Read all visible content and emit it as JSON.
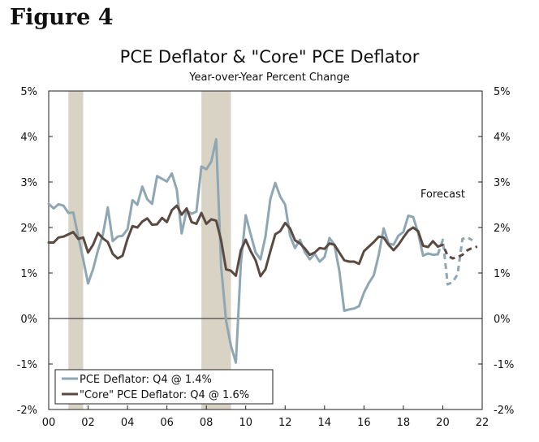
{
  "figure_label": "Figure 4",
  "chart_data": {
    "type": "line",
    "title": "PCE Deflator & \"Core\" PCE Deflator",
    "subtitle": "Year-over-Year Percent Change",
    "xlabel": "",
    "ylabel": "",
    "xlim": [
      2000,
      2022
    ],
    "ylim": [
      -2,
      5
    ],
    "y_ticks": [
      5,
      4,
      3,
      2,
      1,
      0,
      -1,
      -2
    ],
    "y_tick_labels": [
      "5%",
      "4%",
      "3%",
      "2%",
      "1%",
      "0%",
      "-1%",
      "-2%"
    ],
    "x_ticks": [
      2000,
      2002,
      2004,
      2006,
      2008,
      2010,
      2012,
      2014,
      2016,
      2018,
      2020,
      2022
    ],
    "x_tick_labels": [
      "00",
      "02",
      "04",
      "06",
      "08",
      "10",
      "12",
      "14",
      "16",
      "18",
      "20",
      "22"
    ],
    "recessions": [
      [
        2001.0,
        2001.75
      ],
      [
        2007.75,
        2009.25
      ]
    ],
    "annotation": "Forecast",
    "legend": {
      "placement": "bottom-left",
      "entries": [
        {
          "label": "PCE Deflator: Q4 @ 1.4%",
          "color": "#8fa6b3"
        },
        {
          "label": "\"Core\" PCE Deflator: Q4 @ 1.6%",
          "color": "#5a4a42"
        }
      ]
    },
    "series": [
      {
        "name": "PCE Deflator",
        "color": "#8fa6b3",
        "actual": [
          [
            2000.0,
            2.52
          ],
          [
            2000.25,
            2.42
          ],
          [
            2000.5,
            2.51
          ],
          [
            2000.75,
            2.48
          ],
          [
            2001.0,
            2.32
          ],
          [
            2001.25,
            2.33
          ],
          [
            2001.5,
            1.8
          ],
          [
            2001.75,
            1.3
          ],
          [
            2002.0,
            0.77
          ],
          [
            2002.25,
            1.08
          ],
          [
            2002.5,
            1.5
          ],
          [
            2002.75,
            1.85
          ],
          [
            2003.0,
            2.44
          ],
          [
            2003.25,
            1.7
          ],
          [
            2003.5,
            1.8
          ],
          [
            2003.75,
            1.82
          ],
          [
            2004.0,
            1.96
          ],
          [
            2004.25,
            2.6
          ],
          [
            2004.5,
            2.5
          ],
          [
            2004.75,
            2.9
          ],
          [
            2005.0,
            2.62
          ],
          [
            2005.25,
            2.52
          ],
          [
            2005.5,
            3.13
          ],
          [
            2005.75,
            3.07
          ],
          [
            2006.0,
            3.01
          ],
          [
            2006.25,
            3.19
          ],
          [
            2006.5,
            2.83
          ],
          [
            2006.75,
            1.87
          ],
          [
            2007.0,
            2.38
          ],
          [
            2007.25,
            2.3
          ],
          [
            2007.5,
            2.35
          ],
          [
            2007.75,
            3.34
          ],
          [
            2008.0,
            3.28
          ],
          [
            2008.25,
            3.45
          ],
          [
            2008.5,
            3.94
          ],
          [
            2008.75,
            1.15
          ],
          [
            2009.0,
            -0.05
          ],
          [
            2009.25,
            -0.6
          ],
          [
            2009.5,
            -0.97
          ],
          [
            2009.75,
            1.2
          ],
          [
            2010.0,
            2.27
          ],
          [
            2010.25,
            1.85
          ],
          [
            2010.5,
            1.45
          ],
          [
            2010.75,
            1.3
          ],
          [
            2011.0,
            1.8
          ],
          [
            2011.25,
            2.63
          ],
          [
            2011.5,
            2.98
          ],
          [
            2011.75,
            2.68
          ],
          [
            2012.0,
            2.5
          ],
          [
            2012.25,
            1.82
          ],
          [
            2012.5,
            1.55
          ],
          [
            2012.75,
            1.73
          ],
          [
            2013.0,
            1.46
          ],
          [
            2013.25,
            1.3
          ],
          [
            2013.5,
            1.42
          ],
          [
            2013.75,
            1.25
          ],
          [
            2014.0,
            1.35
          ],
          [
            2014.25,
            1.77
          ],
          [
            2014.5,
            1.62
          ],
          [
            2014.75,
            1.05
          ],
          [
            2015.0,
            0.17
          ],
          [
            2015.25,
            0.2
          ],
          [
            2015.5,
            0.22
          ],
          [
            2015.75,
            0.27
          ],
          [
            2016.0,
            0.57
          ],
          [
            2016.25,
            0.78
          ],
          [
            2016.5,
            0.95
          ],
          [
            2016.75,
            1.4
          ],
          [
            2017.0,
            1.98
          ],
          [
            2017.25,
            1.65
          ],
          [
            2017.5,
            1.62
          ],
          [
            2017.75,
            1.82
          ],
          [
            2018.0,
            1.9
          ],
          [
            2018.25,
            2.26
          ],
          [
            2018.5,
            2.23
          ],
          [
            2018.75,
            1.88
          ],
          [
            2019.0,
            1.38
          ],
          [
            2019.25,
            1.43
          ],
          [
            2019.5,
            1.4
          ],
          [
            2019.75,
            1.41
          ]
        ],
        "forecast": [
          [
            2019.75,
            1.41
          ],
          [
            2020.0,
            1.73
          ],
          [
            2020.25,
            0.75
          ],
          [
            2020.5,
            0.8
          ],
          [
            2020.75,
            0.97
          ],
          [
            2021.0,
            1.75
          ],
          [
            2021.25,
            1.78
          ],
          [
            2021.5,
            1.72
          ]
        ]
      },
      {
        "name": "\"Core\" PCE Deflator",
        "color": "#5a4a42",
        "actual": [
          [
            2000.0,
            1.67
          ],
          [
            2000.25,
            1.67
          ],
          [
            2000.5,
            1.78
          ],
          [
            2000.75,
            1.8
          ],
          [
            2001.0,
            1.85
          ],
          [
            2001.25,
            1.9
          ],
          [
            2001.5,
            1.75
          ],
          [
            2001.75,
            1.78
          ],
          [
            2002.0,
            1.45
          ],
          [
            2002.25,
            1.62
          ],
          [
            2002.5,
            1.88
          ],
          [
            2002.75,
            1.76
          ],
          [
            2003.0,
            1.68
          ],
          [
            2003.25,
            1.42
          ],
          [
            2003.5,
            1.32
          ],
          [
            2003.75,
            1.38
          ],
          [
            2004.0,
            1.75
          ],
          [
            2004.25,
            2.03
          ],
          [
            2004.5,
            2.0
          ],
          [
            2004.75,
            2.13
          ],
          [
            2005.0,
            2.2
          ],
          [
            2005.25,
            2.06
          ],
          [
            2005.5,
            2.07
          ],
          [
            2005.75,
            2.21
          ],
          [
            2006.0,
            2.12
          ],
          [
            2006.25,
            2.38
          ],
          [
            2006.5,
            2.48
          ],
          [
            2006.75,
            2.28
          ],
          [
            2007.0,
            2.42
          ],
          [
            2007.25,
            2.12
          ],
          [
            2007.5,
            2.08
          ],
          [
            2007.75,
            2.32
          ],
          [
            2008.0,
            2.08
          ],
          [
            2008.25,
            2.18
          ],
          [
            2008.5,
            2.15
          ],
          [
            2008.75,
            1.72
          ],
          [
            2009.0,
            1.08
          ],
          [
            2009.25,
            1.05
          ],
          [
            2009.5,
            0.94
          ],
          [
            2009.75,
            1.5
          ],
          [
            2010.0,
            1.73
          ],
          [
            2010.25,
            1.48
          ],
          [
            2010.5,
            1.28
          ],
          [
            2010.75,
            0.93
          ],
          [
            2011.0,
            1.08
          ],
          [
            2011.25,
            1.48
          ],
          [
            2011.5,
            1.85
          ],
          [
            2011.75,
            1.92
          ],
          [
            2012.0,
            2.1
          ],
          [
            2012.25,
            1.98
          ],
          [
            2012.5,
            1.72
          ],
          [
            2012.75,
            1.65
          ],
          [
            2013.0,
            1.54
          ],
          [
            2013.25,
            1.4
          ],
          [
            2013.5,
            1.45
          ],
          [
            2013.75,
            1.55
          ],
          [
            2014.0,
            1.53
          ],
          [
            2014.25,
            1.65
          ],
          [
            2014.5,
            1.62
          ],
          [
            2014.75,
            1.45
          ],
          [
            2015.0,
            1.28
          ],
          [
            2015.25,
            1.25
          ],
          [
            2015.5,
            1.25
          ],
          [
            2015.75,
            1.2
          ],
          [
            2016.0,
            1.48
          ],
          [
            2016.25,
            1.58
          ],
          [
            2016.5,
            1.68
          ],
          [
            2016.75,
            1.8
          ],
          [
            2017.0,
            1.78
          ],
          [
            2017.25,
            1.62
          ],
          [
            2017.5,
            1.5
          ],
          [
            2017.75,
            1.62
          ],
          [
            2018.0,
            1.78
          ],
          [
            2018.25,
            1.93
          ],
          [
            2018.5,
            2.0
          ],
          [
            2018.75,
            1.92
          ],
          [
            2019.0,
            1.6
          ],
          [
            2019.25,
            1.57
          ],
          [
            2019.5,
            1.7
          ],
          [
            2019.75,
            1.58
          ]
        ],
        "forecast": [
          [
            2019.75,
            1.58
          ],
          [
            2020.0,
            1.62
          ],
          [
            2020.25,
            1.38
          ],
          [
            2020.5,
            1.32
          ],
          [
            2020.75,
            1.35
          ],
          [
            2021.0,
            1.4
          ],
          [
            2021.25,
            1.5
          ],
          [
            2021.5,
            1.55
          ],
          [
            2021.75,
            1.58
          ]
        ]
      }
    ]
  }
}
